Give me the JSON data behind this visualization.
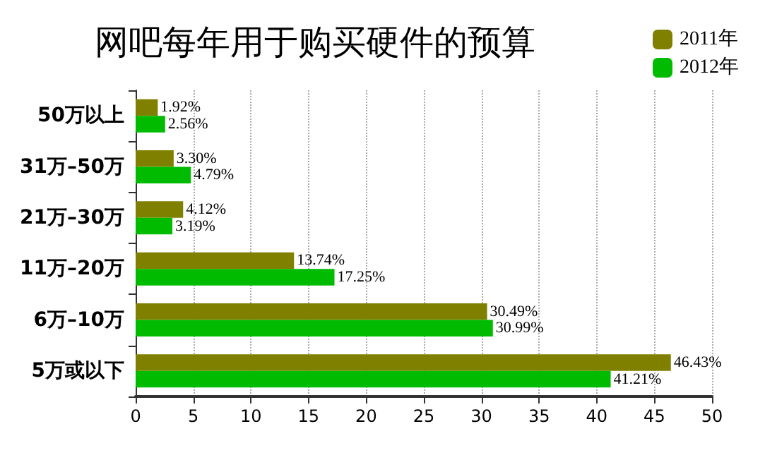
{
  "chart_data": {
    "type": "bar",
    "orientation": "horizontal",
    "title": "网吧每年用于购买硬件的预算",
    "categories": [
      "50万以上",
      "31万–50万",
      "21万–30万",
      "11万–20万",
      "6万–10万",
      "5万或以下"
    ],
    "series": [
      {
        "name": "2011年",
        "color": "#808000",
        "values": [
          1.92,
          3.3,
          4.12,
          13.74,
          30.49,
          46.43
        ],
        "value_labels": [
          "1.92%",
          "3.30%",
          "4.12%",
          "13.74%",
          "30.49%",
          "46.43%"
        ]
      },
      {
        "name": "2012年",
        "color": "#00bb00",
        "values": [
          2.56,
          4.79,
          3.19,
          17.25,
          30.99,
          41.21
        ],
        "value_labels": [
          "2.56%",
          "4.79%",
          "3.19%",
          "17.25%",
          "30.99%",
          "41.21%"
        ]
      }
    ],
    "xlim": [
      0,
      50
    ],
    "xticks": [
      0,
      5,
      10,
      15,
      20,
      25,
      30,
      35,
      40,
      45,
      50
    ],
    "grid": "x",
    "legend": "top right"
  }
}
